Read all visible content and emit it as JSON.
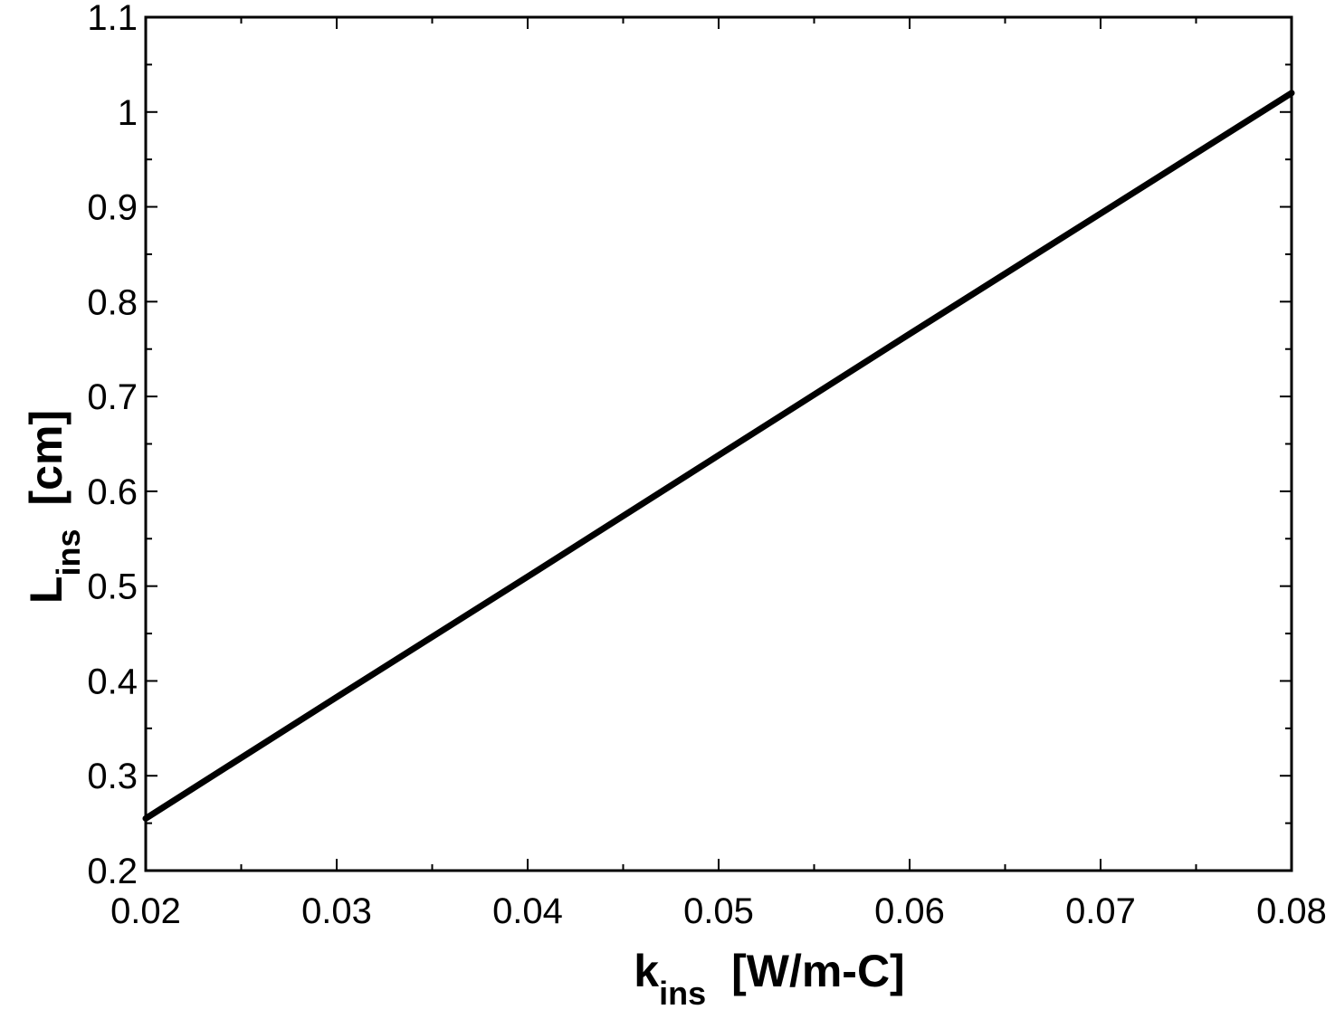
{
  "chart_data": {
    "type": "line",
    "title": "",
    "xlabel": {
      "main": "k",
      "sub": "ins",
      "unit": "[W/m-C]"
    },
    "ylabel": {
      "main": "L",
      "sub": "ins",
      "unit": "[cm]"
    },
    "xlim": [
      0.02,
      0.08
    ],
    "ylim": [
      0.2,
      1.1
    ],
    "x_major_ticks": [
      0.02,
      0.03,
      0.04,
      0.05,
      0.06,
      0.07,
      0.08
    ],
    "x_tick_labels": [
      "0.02",
      "0.03",
      "0.04",
      "0.05",
      "0.06",
      "0.07",
      "0.08"
    ],
    "x_minor_ticks": [
      0.025,
      0.035,
      0.045,
      0.055,
      0.065,
      0.075
    ],
    "y_major_ticks": [
      0.2,
      0.3,
      0.4,
      0.5,
      0.6,
      0.7,
      0.8,
      0.9,
      1.0,
      1.1
    ],
    "y_tick_labels": [
      "0.2",
      "0.3",
      "0.4",
      "0.5",
      "0.6",
      "0.7",
      "0.8",
      "0.9",
      "1",
      "1.1"
    ],
    "y_minor_ticks": [
      0.25,
      0.35,
      0.45,
      0.55,
      0.65,
      0.75,
      0.85,
      0.95,
      1.05
    ],
    "grid": false,
    "legend": "none",
    "series": [
      {
        "color": "#000000",
        "x": [
          0.02,
          0.03,
          0.04,
          0.05,
          0.06,
          0.07,
          0.08
        ],
        "y": [
          0.255,
          0.383,
          0.51,
          0.638,
          0.766,
          0.893,
          1.02
        ]
      }
    ]
  }
}
